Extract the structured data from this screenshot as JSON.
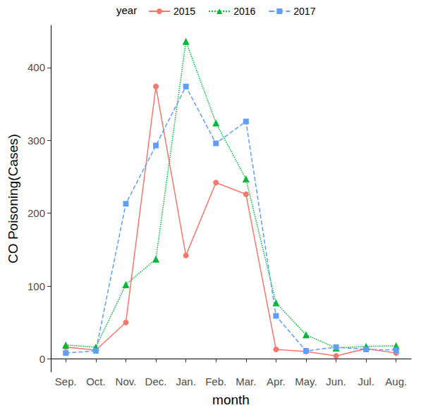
{
  "chart_data": {
    "type": "line",
    "x_label": "month",
    "y_label": "CO Poisoning(Cases)",
    "legend_title": "year",
    "legend": "top",
    "grid": false,
    "categories": [
      "Sep.",
      "Oct.",
      "Nov.",
      "Dec.",
      "Jan.",
      "Feb.",
      "Mar.",
      "Apr.",
      "May.",
      "Jun.",
      "Jul.",
      "Aug."
    ],
    "series": [
      {
        "name": "2015",
        "color": "#F8766D",
        "marker": "circle",
        "line_style": "solid",
        "values": [
          16,
          12,
          50,
          374,
          142,
          242,
          226,
          13,
          10,
          4,
          14,
          8
        ]
      },
      {
        "name": "2016",
        "color": "#00BA38",
        "marker": "triangle",
        "line_style": "dotted",
        "values": [
          19,
          16,
          102,
          137,
          436,
          324,
          247,
          77,
          33,
          15,
          17,
          18
        ]
      },
      {
        "name": "2017",
        "color": "#619CFF",
        "marker": "square",
        "line_style": "dashed",
        "values": [
          8,
          11,
          213,
          293,
          374,
          296,
          326,
          59,
          11,
          16,
          13,
          12
        ]
      }
    ],
    "ylim": [
      -18,
      458
    ],
    "yticks": [
      0,
      100,
      200,
      300,
      400
    ]
  }
}
